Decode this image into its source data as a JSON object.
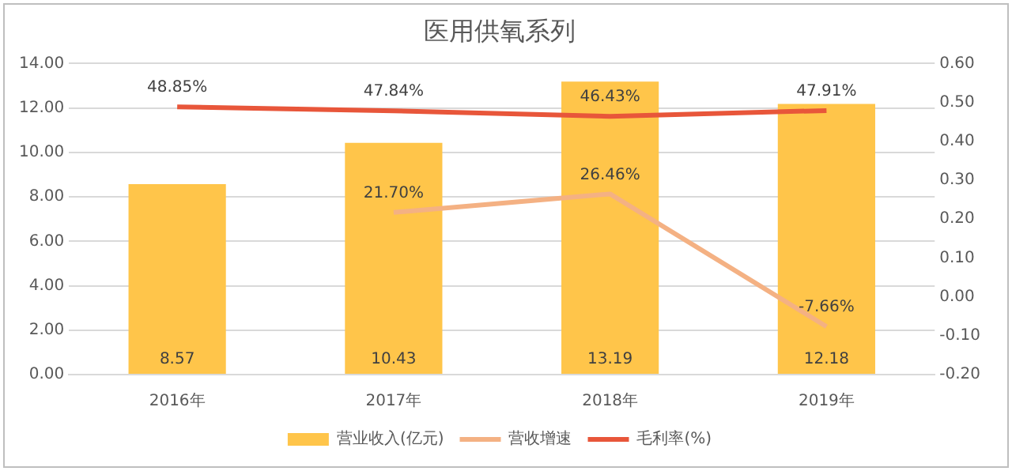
{
  "chart_data": {
    "type": "bar",
    "title": "医用供氧系列",
    "categories": [
      "2016年",
      "2017年",
      "2018年",
      "2019年"
    ],
    "series": [
      {
        "name": "营业收入(亿元)",
        "color": "#ffc54a",
        "values": [
          8.57,
          10.43,
          13.19,
          12.18
        ],
        "value_labels": [
          "8.57",
          "10.43",
          "13.19",
          "12.18"
        ]
      },
      {
        "name": "营收增速",
        "type": "line",
        "axis": "y2",
        "color": "#f4b183",
        "values": [
          null,
          0.217,
          0.2646,
          -0.0766
        ],
        "value_labels": [
          null,
          "21.70%",
          "26.46%",
          "-7.66%"
        ]
      },
      {
        "name": "毛利率(%)",
        "type": "line",
        "axis": "y2",
        "color": "#e8563a",
        "values": [
          0.4885,
          0.4784,
          0.4643,
          0.4791
        ],
        "value_labels": [
          "48.85%",
          "47.84%",
          "46.43%",
          "47.91%"
        ]
      }
    ],
    "ylim": [
      0,
      14
    ],
    "yticks": [
      {
        "value": 0,
        "label": "0.00"
      },
      {
        "value": 2,
        "label": "2.00"
      },
      {
        "value": 4,
        "label": "4.00"
      },
      {
        "value": 6,
        "label": "6.00"
      },
      {
        "value": 8,
        "label": "8.00"
      },
      {
        "value": 10,
        "label": "10.00"
      },
      {
        "value": 12,
        "label": "12.00"
      },
      {
        "value": 14,
        "label": "14.00"
      }
    ],
    "y2lim": [
      -0.2,
      0.6
    ],
    "y2ticks": [
      {
        "value": -0.2,
        "label": "-0.20"
      },
      {
        "value": -0.1,
        "label": "-0.10"
      },
      {
        "value": 0,
        "label": "0.00"
      },
      {
        "value": 0.1,
        "label": "0.10"
      },
      {
        "value": 0.2,
        "label": "0.20"
      },
      {
        "value": 0.3,
        "label": "0.30"
      },
      {
        "value": 0.4,
        "label": "0.40"
      },
      {
        "value": 0.5,
        "label": "0.50"
      },
      {
        "value": 0.6,
        "label": "0.60"
      }
    ],
    "grid": "y",
    "legend": "bottom",
    "marker": "none"
  }
}
